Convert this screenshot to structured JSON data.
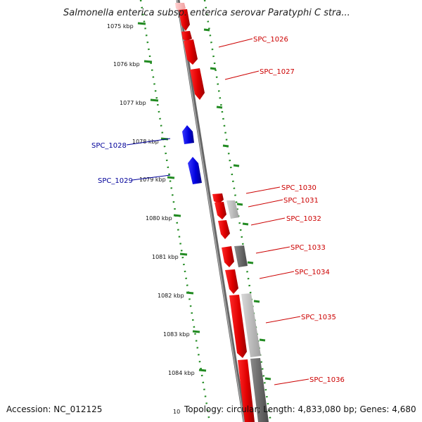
{
  "title": "Salmonella enterica subsp. enterica serovar Paratyphi C stra...",
  "accession": "Accession: NC_012125",
  "topology": "Topology: circular; Length: 4,833,080 bp; Genes: 4,680",
  "ticks": [
    "1075 kbp",
    "1076 kbp",
    "1077 kbp",
    "1078 kbp",
    "1079 kbp",
    "1080 kbp",
    "1081 kbp",
    "1082 kbp",
    "1083 kbp",
    "1084 kbp",
    "10"
  ],
  "colors": {
    "forward": "#ff0000",
    "reverse": "#0000cc",
    "backbone": "#888888",
    "tick": "#228b22",
    "label_forward": "#cc0000",
    "label_reverse": "#000099"
  },
  "genes": [
    {
      "name": "SPC_1026",
      "strand": "forward"
    },
    {
      "name": "SPC_1027",
      "strand": "forward"
    },
    {
      "name": "SPC_1028",
      "strand": "reverse"
    },
    {
      "name": "SPC_1029",
      "strand": "reverse"
    },
    {
      "name": "SPC_1030",
      "strand": "forward"
    },
    {
      "name": "SPC_1031",
      "strand": "forward"
    },
    {
      "name": "SPC_1032",
      "strand": "forward"
    },
    {
      "name": "SPC_1033",
      "strand": "forward"
    },
    {
      "name": "SPC_1034",
      "strand": "forward"
    },
    {
      "name": "SPC_1035",
      "strand": "forward"
    },
    {
      "name": "SPC_1036",
      "strand": "forward"
    }
  ]
}
